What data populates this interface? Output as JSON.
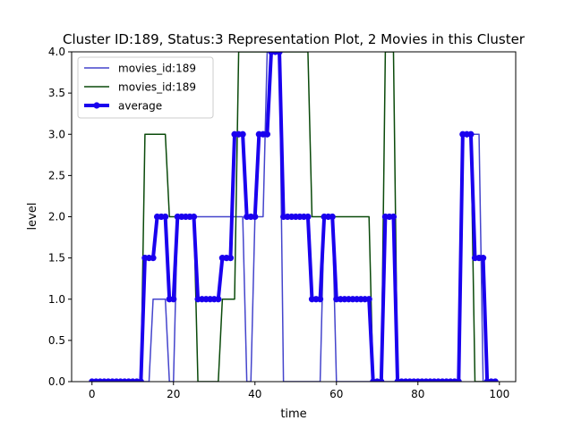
{
  "chart_data": {
    "type": "line",
    "title": "Cluster ID:189, Status:3 Representation Plot, 2 Movies in this Cluster",
    "xlabel": "time",
    "ylabel": "level",
    "xlim": [
      -5,
      104
    ],
    "ylim": [
      0,
      4.0
    ],
    "x_ticks": [
      0,
      20,
      40,
      60,
      80,
      100
    ],
    "y_ticks": [
      0.0,
      0.5,
      1.0,
      1.5,
      2.0,
      2.5,
      3.0,
      3.5,
      4.0
    ],
    "x_tick_labels": [
      "0",
      "20",
      "40",
      "60",
      "80",
      "100"
    ],
    "y_tick_labels": [
      "0.0",
      "0.5",
      "1.0",
      "1.5",
      "2.0",
      "2.5",
      "3.0",
      "3.5",
      "4.0"
    ],
    "grid": false,
    "legend_position": "upper-left",
    "series": [
      {
        "name": "movies_id:189",
        "color": "#4444cc",
        "line_width": 1.5,
        "markers": false,
        "x": [
          0,
          1,
          2,
          3,
          4,
          5,
          6,
          7,
          8,
          9,
          10,
          11,
          12,
          13,
          14,
          15,
          16,
          17,
          18,
          19,
          20,
          21,
          22,
          23,
          24,
          25,
          26,
          27,
          28,
          29,
          30,
          31,
          32,
          33,
          34,
          35,
          36,
          37,
          38,
          39,
          40,
          41,
          42,
          43,
          44,
          45,
          46,
          47,
          48,
          49,
          50,
          51,
          52,
          53,
          54,
          55,
          56,
          57,
          58,
          59,
          60,
          61,
          62,
          63,
          64,
          65,
          66,
          67,
          68,
          69,
          70,
          71,
          72,
          73,
          74,
          75,
          76,
          77,
          78,
          79,
          80,
          81,
          82,
          83,
          84,
          85,
          86,
          87,
          88,
          89,
          90,
          91,
          92,
          93,
          94,
          95,
          96,
          97,
          98,
          99
        ],
        "values": [
          0,
          0,
          0,
          0,
          0,
          0,
          0,
          0,
          0,
          0,
          0,
          0,
          0,
          0,
          0,
          1,
          1,
          1,
          1,
          0,
          0,
          2,
          2,
          2,
          2,
          2,
          2,
          2,
          2,
          2,
          2,
          2,
          2,
          2,
          2,
          2,
          2,
          2,
          0,
          0,
          2,
          2,
          2,
          4,
          4,
          4,
          4,
          0,
          0,
          0,
          0,
          0,
          0,
          0,
          0,
          0,
          0,
          2,
          2,
          2,
          0,
          0,
          0,
          0,
          0,
          0,
          0,
          0,
          0,
          0,
          0,
          0,
          0,
          0,
          0,
          0,
          0,
          0,
          0,
          0,
          0,
          0,
          0,
          0,
          0,
          0,
          0,
          0,
          0,
          0,
          0,
          3,
          3,
          3,
          3,
          3,
          0,
          0,
          0,
          0
        ]
      },
      {
        "name": "movies_id:189",
        "color": "#0a4a0a",
        "line_width": 1.5,
        "markers": false,
        "x": [
          0,
          1,
          2,
          3,
          4,
          5,
          6,
          7,
          8,
          9,
          10,
          11,
          12,
          13,
          14,
          15,
          16,
          17,
          18,
          19,
          20,
          21,
          22,
          23,
          24,
          25,
          26,
          27,
          28,
          29,
          30,
          31,
          32,
          33,
          34,
          35,
          36,
          37,
          38,
          39,
          40,
          41,
          42,
          43,
          44,
          45,
          46,
          47,
          48,
          49,
          50,
          51,
          52,
          53,
          54,
          55,
          56,
          57,
          58,
          59,
          60,
          61,
          62,
          63,
          64,
          65,
          66,
          67,
          68,
          69,
          70,
          71,
          72,
          73,
          74,
          75,
          76,
          77,
          78,
          79,
          80,
          81,
          82,
          83,
          84,
          85,
          86,
          87,
          88,
          89,
          90,
          91,
          92,
          93,
          94,
          95,
          96,
          97,
          98,
          99
        ],
        "values": [
          0,
          0,
          0,
          0,
          0,
          0,
          0,
          0,
          0,
          0,
          0,
          0,
          0,
          3,
          3,
          3,
          3,
          3,
          3,
          2,
          2,
          2,
          2,
          2,
          2,
          2,
          0,
          0,
          0,
          0,
          0,
          0,
          1,
          1,
          1,
          1,
          4,
          4,
          4,
          4,
          4,
          4,
          4,
          4,
          4,
          4,
          4,
          4,
          4,
          4,
          4,
          4,
          4,
          4,
          2,
          2,
          2,
          2,
          2,
          2,
          2,
          2,
          2,
          2,
          2,
          2,
          2,
          2,
          2,
          0,
          0,
          0,
          4,
          4,
          4,
          0,
          0,
          0,
          0,
          0,
          0,
          0,
          0,
          0,
          0,
          0,
          0,
          0,
          0,
          0,
          0,
          3,
          3,
          3,
          0,
          0,
          0,
          0,
          0,
          0
        ]
      },
      {
        "name": "average",
        "color": "#1a00ee",
        "line_width": 4,
        "markers": true,
        "x": [
          0,
          1,
          2,
          3,
          4,
          5,
          6,
          7,
          8,
          9,
          10,
          11,
          12,
          13,
          14,
          15,
          16,
          17,
          18,
          19,
          20,
          21,
          22,
          23,
          24,
          25,
          26,
          27,
          28,
          29,
          30,
          31,
          32,
          33,
          34,
          35,
          36,
          37,
          38,
          39,
          40,
          41,
          42,
          43,
          44,
          45,
          46,
          47,
          48,
          49,
          50,
          51,
          52,
          53,
          54,
          55,
          56,
          57,
          58,
          59,
          60,
          61,
          62,
          63,
          64,
          65,
          66,
          67,
          68,
          69,
          70,
          71,
          72,
          73,
          74,
          75,
          76,
          77,
          78,
          79,
          80,
          81,
          82,
          83,
          84,
          85,
          86,
          87,
          88,
          89,
          90,
          91,
          92,
          93,
          94,
          95,
          96,
          97,
          98,
          99
        ],
        "values": [
          0,
          0,
          0,
          0,
          0,
          0,
          0,
          0,
          0,
          0,
          0,
          0,
          0,
          1.5,
          1.5,
          1.5,
          2,
          2,
          2,
          1,
          1,
          2,
          2,
          2,
          2,
          2,
          1,
          1,
          1,
          1,
          1,
          1,
          1.5,
          1.5,
          1.5,
          3,
          3,
          3,
          2,
          2,
          2,
          3,
          3,
          3,
          4,
          4,
          4,
          2,
          2,
          2,
          2,
          2,
          2,
          2,
          1,
          1,
          1,
          2,
          2,
          2,
          1,
          1,
          1,
          1,
          1,
          1,
          1,
          1,
          1,
          0,
          0,
          0,
          2,
          2,
          2,
          0,
          0,
          0,
          0,
          0,
          0,
          0,
          0,
          0,
          0,
          0,
          0,
          0,
          0,
          0,
          0,
          3,
          3,
          3,
          1.5,
          1.5,
          1.5,
          0,
          0,
          0
        ]
      }
    ]
  }
}
